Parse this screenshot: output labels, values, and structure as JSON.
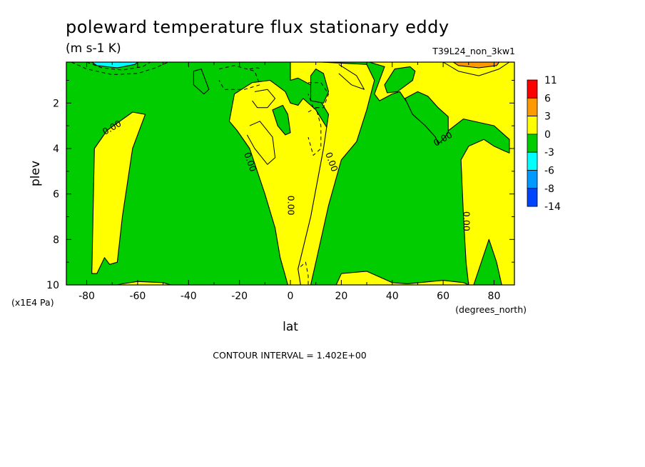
{
  "chart_data": {
    "type": "heatmap",
    "title": "poleward temperature flux stationary eddy",
    "units_label": "(m s-1 K)",
    "run_label": "T39L24_non_3kw1",
    "xlabel": "lat",
    "x_unit_label": "(degrees_north)",
    "ylabel": "plev",
    "y_unit_label": "(x1E4 Pa)",
    "xlim": [
      -88,
      88
    ],
    "ylim": [
      10,
      0.2
    ],
    "x_ticks": [
      -80,
      -60,
      -40,
      -20,
      0,
      20,
      40,
      60,
      80
    ],
    "x_tick_labels": [
      "-80",
      "-60",
      "-40",
      "-20",
      "0",
      "20",
      "40",
      "60",
      "80"
    ],
    "y_ticks": [
      2,
      4,
      6,
      8,
      10
    ],
    "y_tick_labels": [
      "2",
      "4",
      "6",
      "8",
      "10"
    ],
    "contour_interval_text": "CONTOUR INTERVAL = 1.402E+00",
    "contour_labels": [
      "0.00",
      "0.00",
      "0.00",
      "0.00",
      "0.00",
      "0.00"
    ],
    "colorbar": {
      "levels": [
        "11",
        "6",
        "3",
        "0",
        "-3",
        "-6",
        "-8",
        "-14"
      ],
      "colors": [
        "#ff0000",
        "#ff9900",
        "#ffff00",
        "#00cc00",
        "#00ffff",
        "#0099ff",
        "#0044ff"
      ]
    },
    "background_color": "#00cc00",
    "regions": [
      {
        "name": "sh-positive-band",
        "color": "#ffff00",
        "points": [
          [
            -78,
            9.5
          ],
          [
            -77,
            4
          ],
          [
            -72,
            3.2
          ],
          [
            -62,
            2.4
          ],
          [
            -57,
            2.5
          ],
          [
            -62,
            4
          ],
          [
            -66,
            7
          ],
          [
            -68,
            9
          ],
          [
            -71,
            9.1
          ],
          [
            -73,
            8.8
          ],
          [
            -76,
            9.5
          ]
        ]
      },
      {
        "name": "sh-low-band-small",
        "color": "#ffff00",
        "points": [
          [
            -68,
            10
          ],
          [
            -66,
            9.95
          ],
          [
            -60,
            9.85
          ],
          [
            -50,
            9.9
          ],
          [
            -47,
            10
          ]
        ]
      },
      {
        "name": "central-positive-tongue",
        "color": "#ffff00",
        "points": [
          [
            -22,
            1.6
          ],
          [
            -15,
            1.1
          ],
          [
            -8,
            1.0
          ],
          [
            -2,
            1.5
          ],
          [
            0,
            2
          ],
          [
            3,
            2.1
          ],
          [
            5,
            1.8
          ],
          [
            10,
            2.3
          ],
          [
            15,
            3.2
          ],
          [
            13,
            5
          ],
          [
            9,
            7
          ],
          [
            5,
            8.5
          ],
          [
            3,
            9.3
          ],
          [
            5,
            10
          ],
          [
            -1,
            10
          ],
          [
            -2,
            9.6
          ],
          [
            -4,
            8.8
          ],
          [
            -6,
            7.5
          ],
          [
            -10,
            6
          ],
          [
            -16,
            4
          ],
          [
            -21,
            3.2
          ],
          [
            -24,
            2.8
          ]
        ]
      },
      {
        "name": "nh-central-positive",
        "color": "#ffff00",
        "points": [
          [
            0,
            0.2
          ],
          [
            12,
            0.2
          ],
          [
            30,
            0.3
          ],
          [
            33,
            1
          ],
          [
            30,
            2.3
          ],
          [
            26,
            3.7
          ],
          [
            20,
            4.5
          ],
          [
            15,
            6.5
          ],
          [
            10,
            9
          ],
          [
            8,
            10
          ],
          [
            4,
            10
          ],
          [
            3,
            9.3
          ],
          [
            8,
            7
          ],
          [
            13,
            4
          ],
          [
            15,
            2.5
          ],
          [
            8,
            1.2
          ],
          [
            3,
            0.9
          ],
          [
            0,
            1.0
          ]
        ]
      },
      {
        "name": "nh-main-positive",
        "color": "#ffff00",
        "points": [
          [
            31,
            0.2
          ],
          [
            88,
            0.2
          ],
          [
            88,
            10
          ],
          [
            83,
            10
          ],
          [
            81,
            9
          ],
          [
            78,
            8
          ],
          [
            75,
            9
          ],
          [
            72,
            10
          ],
          [
            70,
            10
          ],
          [
            69,
            9
          ],
          [
            68,
            7
          ],
          [
            67,
            4.5
          ],
          [
            70,
            3.9
          ],
          [
            76,
            3.6
          ],
          [
            80,
            3.9
          ],
          [
            84,
            4.1
          ],
          [
            86,
            4.2
          ],
          [
            86,
            3.6
          ],
          [
            80,
            3
          ],
          [
            68,
            2.7
          ],
          [
            61,
            3.3
          ],
          [
            54,
            3
          ],
          [
            50,
            2.6
          ],
          [
            46,
            2
          ],
          [
            43,
            1.5
          ],
          [
            40,
            1.6
          ],
          [
            35,
            1.9
          ],
          [
            33,
            1.6
          ],
          [
            35,
            1
          ],
          [
            37,
            0.4
          ]
        ]
      },
      {
        "name": "nh-bottom-positive",
        "color": "#ffff00",
        "points": [
          [
            18,
            10
          ],
          [
            20,
            9.5
          ],
          [
            30,
            9.4
          ],
          [
            40,
            9.9
          ],
          [
            46,
            9.95
          ],
          [
            60,
            9.8
          ],
          [
            68,
            9.9
          ],
          [
            70,
            10
          ]
        ]
      },
      {
        "name": "nh-green-island-upper",
        "color": "#00cc00",
        "points": [
          [
            41,
            0.5
          ],
          [
            47,
            0.4
          ],
          [
            49,
            0.6
          ],
          [
            48,
            1.0
          ],
          [
            42,
            1.5
          ],
          [
            38,
            1.55
          ],
          [
            37,
            1.2
          ]
        ]
      },
      {
        "name": "nh-green-island-mid",
        "color": "#00cc00",
        "points": [
          [
            45,
            1.8
          ],
          [
            50,
            1.5
          ],
          [
            54,
            1.7
          ],
          [
            58,
            2.2
          ],
          [
            62,
            2.6
          ],
          [
            62,
            3.3
          ],
          [
            60,
            3.6
          ],
          [
            58,
            3.8
          ],
          [
            57,
            3.5
          ],
          [
            53,
            3
          ],
          [
            48,
            2.5
          ]
        ]
      },
      {
        "name": "sh-green-upper",
        "color": "#00cc00",
        "points": [
          [
            -38,
            0.6
          ],
          [
            -35,
            0.5
          ],
          [
            -32,
            1.4
          ],
          [
            -34,
            1.6
          ],
          [
            -38,
            1.2
          ]
        ]
      },
      {
        "name": "center-green-blob",
        "color": "#00cc00",
        "points": [
          [
            -7,
            2.3
          ],
          [
            -3,
            2.1
          ],
          [
            -1,
            2.5
          ],
          [
            0,
            3.3
          ],
          [
            -2,
            3.4
          ],
          [
            -5,
            3
          ]
        ]
      },
      {
        "name": "nh-green-between",
        "color": "#00cc00",
        "points": [
          [
            8,
            0.8
          ],
          [
            10,
            0.5
          ],
          [
            13,
            0.7
          ],
          [
            15,
            1.5
          ],
          [
            13,
            2
          ],
          [
            8,
            1.9
          ]
        ]
      },
      {
        "name": "top-cyan",
        "color": "#00ffff",
        "points": [
          [
            -78,
            0.2
          ],
          [
            -60,
            0.2
          ],
          [
            -61,
            0.3
          ],
          [
            -68,
            0.45
          ],
          [
            -76,
            0.35
          ]
        ]
      },
      {
        "name": "top-orange",
        "color": "#ff9900",
        "points": [
          [
            64,
            0.2
          ],
          [
            82,
            0.2
          ],
          [
            81,
            0.35
          ],
          [
            74,
            0.45
          ],
          [
            66,
            0.35
          ]
        ]
      }
    ],
    "contour_lines": [
      {
        "style": "dashed",
        "points": [
          [
            -86,
            0.2
          ],
          [
            -80,
            0.5
          ],
          [
            -70,
            0.75
          ],
          [
            -60,
            0.7
          ],
          [
            -53,
            0.45
          ],
          [
            -48,
            0.2
          ]
        ]
      },
      {
        "style": "dashed",
        "points": [
          [
            -80,
            0.2
          ],
          [
            -74,
            0.45
          ],
          [
            -66,
            0.55
          ],
          [
            -58,
            0.4
          ],
          [
            -55,
            0.2
          ]
        ]
      },
      {
        "style": "dashed",
        "points": [
          [
            -28,
            0.5
          ],
          [
            -22,
            0.35
          ],
          [
            -14,
            0.6
          ],
          [
            -12,
            1.2
          ],
          [
            -18,
            1.4
          ],
          [
            -26,
            1.4
          ],
          [
            -28,
            1
          ]
        ]
      },
      {
        "style": "solid",
        "points": [
          [
            -14,
            1.5
          ],
          [
            -9,
            1.4
          ],
          [
            -6,
            1.8
          ],
          [
            -9,
            2.2
          ],
          [
            -13,
            2.2
          ],
          [
            -15,
            1.9
          ]
        ]
      },
      {
        "style": "solid",
        "points": [
          [
            -16,
            3
          ],
          [
            -12,
            2.8
          ],
          [
            -7,
            3.5
          ],
          [
            -6,
            4.4
          ],
          [
            -9,
            4.7
          ],
          [
            -14,
            4
          ],
          [
            -17,
            3.4
          ]
        ]
      },
      {
        "style": "dashed",
        "points": [
          [
            7,
            1.1
          ],
          [
            12,
            1.1
          ],
          [
            15,
            1.6
          ],
          [
            13,
            2.2
          ],
          [
            9,
            2.2
          ],
          [
            7,
            1.6
          ]
        ]
      },
      {
        "style": "dashed",
        "points": [
          [
            7,
            2.4
          ],
          [
            10,
            2.2
          ],
          [
            12,
            3
          ],
          [
            12,
            4
          ],
          [
            9,
            4.3
          ],
          [
            7,
            3.5
          ]
        ]
      },
      {
        "style": "solid",
        "points": [
          [
            19,
            0.3
          ],
          [
            26,
            0.8
          ],
          [
            29,
            1.4
          ],
          [
            24,
            1.2
          ],
          [
            19,
            0.7
          ]
        ]
      },
      {
        "style": "solid",
        "points": [
          [
            60,
            0.2
          ],
          [
            66,
            0.6
          ],
          [
            74,
            0.8
          ],
          [
            82,
            0.5
          ],
          [
            86,
            0.2
          ]
        ]
      },
      {
        "style": "dashed",
        "points": [
          [
            4,
            9.2
          ],
          [
            6,
            9
          ],
          [
            7,
            9.6
          ],
          [
            7,
            10
          ],
          [
            5,
            10
          ]
        ]
      },
      {
        "style": "dashed",
        "points": [
          [
            -16,
            0.5
          ],
          [
            -13,
            0.45
          ],
          [
            -11,
            0.5
          ]
        ]
      }
    ],
    "contour_label_positions": [
      [
        -70,
        3.1
      ],
      [
        -16,
        4.6
      ],
      [
        0,
        6.5
      ],
      [
        16,
        4.6
      ],
      [
        60,
        3.6
      ],
      [
        69,
        7.2
      ]
    ]
  }
}
